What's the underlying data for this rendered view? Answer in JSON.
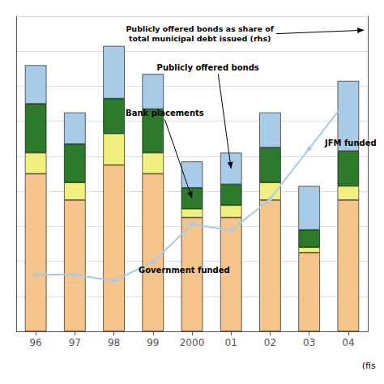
{
  "chart_data": {
    "type": "bar",
    "categories": [
      "96",
      "97",
      "98",
      "99",
      "2000",
      "01",
      "02",
      "03",
      "04"
    ],
    "series": [
      {
        "name": "Government funded",
        "color": "#F5C48A",
        "values": [
          9.0,
          7.5,
          9.5,
          9.0,
          6.5,
          6.5,
          7.5,
          4.5,
          7.5
        ]
      },
      {
        "name": "JFM funded",
        "color": "#F0F080",
        "values": [
          1.2,
          1.0,
          1.8,
          1.2,
          0.5,
          0.7,
          1.0,
          0.3,
          0.8
        ]
      },
      {
        "name": "Bank placements",
        "color": "#2D7A2D",
        "values": [
          2.8,
          2.2,
          2.0,
          2.5,
          1.2,
          1.2,
          2.0,
          1.0,
          2.0
        ]
      },
      {
        "name": "Publicly offered bonds",
        "color": "#A8CCE8",
        "values": [
          2.2,
          1.8,
          3.0,
          2.0,
          1.5,
          1.8,
          2.0,
          2.5,
          4.0
        ]
      },
      {
        "name": "Publicly offered bonds as share of\ntotal municipal debt issued (rhs)",
        "type": "line",
        "axis": "y2",
        "color": "#A8CCE8",
        "marker": "diamond",
        "values": [
          9,
          9,
          8,
          11,
          17,
          16,
          21,
          29,
          37
        ]
      }
    ],
    "stacked": true,
    "ylim": [
      0,
      18
    ],
    "yticks": [
      0,
      2,
      4,
      6,
      8,
      10,
      12,
      14,
      16,
      18
    ],
    "y2lim": [
      0,
      50
    ],
    "grid": true,
    "tick_labels": "x",
    "annotations": [
      "(fis"
    ]
  }
}
